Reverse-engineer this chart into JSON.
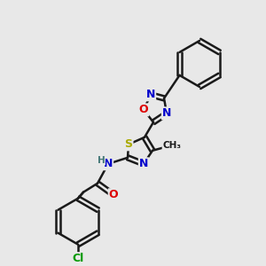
{
  "bg": "#e8e8e8",
  "bc": "#1a1a1a",
  "N": "#0000cc",
  "O": "#dd0000",
  "S": "#aaaa00",
  "Cl": "#009900",
  "H": "#447777",
  "lw": 1.8,
  "dbl": 2.5,
  "fs": 9
}
